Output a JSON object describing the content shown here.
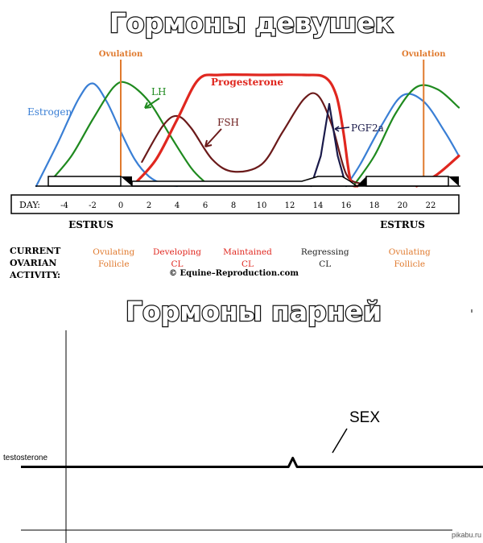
{
  "titles": {
    "female": "Гормоны девушек",
    "male": "Гормоны парней"
  },
  "chart_data": [
    {
      "type": "line",
      "xlim": [
        -6,
        24
      ],
      "ylim": [
        0,
        1
      ],
      "day_axis_label": "DAY:",
      "x_ticks": [
        -4,
        -2,
        0,
        2,
        4,
        6,
        8,
        10,
        12,
        14,
        16,
        18,
        20,
        22
      ],
      "ovulation_label": "Ovulation",
      "ovulation_days": [
        0,
        21.5
      ],
      "estrus_label": "ESTRUS",
      "estrus_label_days": [
        -2,
        19.5
      ],
      "activity_heading": [
        "CURRENT",
        "OVARIAN",
        "ACTIVITY:"
      ],
      "activity_stages": [
        {
          "line1": "Ovulating",
          "line2": "Follicle",
          "color": "#e07a2e",
          "day": -0.5
        },
        {
          "line1": "Developing",
          "line2": "CL",
          "color": "#e0271f",
          "day": 4
        },
        {
          "line1": "Maintained",
          "line2": "CL",
          "color": "#e0271f",
          "day": 9
        },
        {
          "line1": "Regressing",
          "line2": "CL",
          "color": "#222222",
          "day": 14.5
        },
        {
          "line1": "Ovulating",
          "line2": "Follicle",
          "color": "#e07a2e",
          "day": 20.5
        }
      ],
      "copyright": "© Equine–Reproduction.com",
      "series": [
        {
          "name": "Estrogen",
          "color": "#3a7fd5",
          "points": [
            [
              -6,
              0
            ],
            [
              -4.5,
              0.35
            ],
            [
              -3,
              0.72
            ],
            [
              -2,
              0.85
            ],
            [
              -1,
              0.7
            ],
            [
              0,
              0.45
            ],
            [
              1,
              0.22
            ],
            [
              2,
              0.08
            ],
            [
              3,
              0.02
            ],
            [
              4,
              0
            ]
          ]
        },
        {
          "name": "Estrogen",
          "color": "#3a7fd5",
          "points": [
            [
              16,
              0
            ],
            [
              17,
              0.18
            ],
            [
              18.5,
              0.5
            ],
            [
              20,
              0.75
            ],
            [
              21.5,
              0.7
            ],
            [
              23,
              0.45
            ],
            [
              24,
              0.25
            ]
          ]
        },
        {
          "name": "LH",
          "color": "#1f8a1f",
          "points": [
            [
              -5,
              0.04
            ],
            [
              -3.5,
              0.25
            ],
            [
              -2,
              0.55
            ],
            [
              -0.5,
              0.82
            ],
            [
              0.5,
              0.85
            ],
            [
              2,
              0.7
            ],
            [
              3.5,
              0.42
            ],
            [
              5,
              0.15
            ],
            [
              6,
              0.03
            ]
          ]
        },
        {
          "name": "LH",
          "color": "#1f8a1f",
          "points": [
            [
              16.5,
              0
            ],
            [
              18,
              0.25
            ],
            [
              19.5,
              0.6
            ],
            [
              21,
              0.82
            ],
            [
              22.5,
              0.8
            ],
            [
              24,
              0.65
            ]
          ]
        },
        {
          "name": "FSH",
          "color": "#6b1a1a",
          "points": [
            [
              1.5,
              0.2
            ],
            [
              3,
              0.5
            ],
            [
              4,
              0.58
            ],
            [
              5,
              0.48
            ],
            [
              6.5,
              0.22
            ],
            [
              8,
              0.12
            ],
            [
              10,
              0.18
            ],
            [
              11.5,
              0.45
            ],
            [
              13,
              0.72
            ],
            [
              14,
              0.75
            ],
            [
              15,
              0.5
            ],
            [
              16,
              0.1
            ],
            [
              17,
              0.02
            ]
          ]
        },
        {
          "name": "Progesterone",
          "color": "#e0271f",
          "points": [
            [
              1,
              0.02
            ],
            [
              2.5,
              0.22
            ],
            [
              4,
              0.55
            ],
            [
              5.5,
              0.88
            ],
            [
              7,
              0.92
            ],
            [
              10,
              0.92
            ],
            [
              13,
              0.92
            ],
            [
              14.5,
              0.9
            ],
            [
              15.3,
              0.75
            ],
            [
              15.8,
              0.45
            ],
            [
              16.3,
              0.05
            ],
            [
              16.8,
              0
            ]
          ]
        },
        {
          "name": "Progesterone",
          "color": "#e0271f",
          "points": [
            [
              21,
              0
            ],
            [
              22.5,
              0.1
            ],
            [
              24,
              0.25
            ]
          ]
        },
        {
          "name": "PGF2a",
          "color": "#1a1a4a",
          "points": [
            [
              13.5,
              0
            ],
            [
              14.2,
              0.25
            ],
            [
              14.8,
              0.68
            ],
            [
              15.4,
              0.25
            ],
            [
              16,
              0
            ]
          ]
        }
      ],
      "labels": [
        {
          "text": "Estrogen",
          "color": "#3a7fd5"
        },
        {
          "text": "LH",
          "color": "#1f8a1f"
        },
        {
          "text": "Progesterone",
          "color": "#e0271f"
        },
        {
          "text": "FSH",
          "color": "#6b1a1a"
        },
        {
          "text": "PGF2a",
          "color": "#1a1a4a"
        }
      ]
    },
    {
      "type": "line",
      "ylabel": "testosterone",
      "annotation": "SEX",
      "xlim": [
        0,
        100
      ],
      "ylim": [
        0,
        1
      ],
      "series": [
        {
          "name": "testosterone",
          "color": "#000000",
          "points": [
            [
              -5,
              0.5
            ],
            [
              62,
              0.5
            ],
            [
              63,
              0.57
            ],
            [
              64,
              0.5
            ],
            [
              110,
              0.5
            ]
          ]
        }
      ]
    }
  ],
  "watermark": "pikabu.ru"
}
